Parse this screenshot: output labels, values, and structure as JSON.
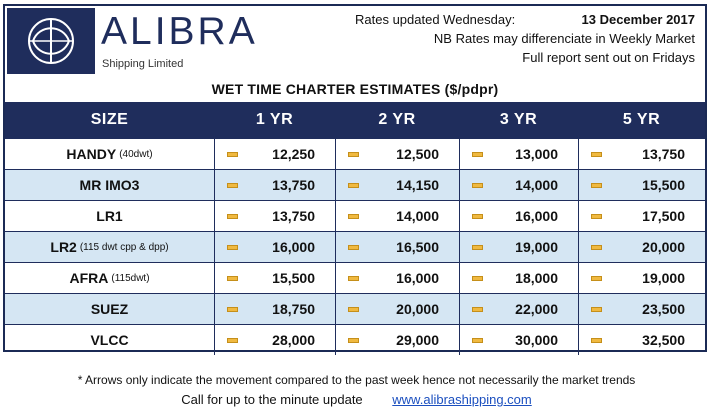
{
  "brand": {
    "name": "ALIBRA",
    "tagline": "Shipping Limited"
  },
  "update": {
    "label": "Rates updated Wednesday:",
    "date": "13 December 2017",
    "note1": "NB Rates may differenciate in Weekly Market",
    "note2": "Full report sent out on Fridays"
  },
  "title": "WET TIME CHARTER ESTIMATES ($/pdpr)",
  "columns": [
    "SIZE",
    "1 YR",
    "2 YR",
    "3 YR",
    "5 YR"
  ],
  "rows": [
    {
      "size": "HANDY",
      "note": "(40dwt)",
      "values": [
        "12,250",
        "12,500",
        "13,000",
        "13,750"
      ]
    },
    {
      "size": "MR IMO3",
      "note": "",
      "values": [
        "13,750",
        "14,150",
        "14,000",
        "15,500"
      ]
    },
    {
      "size": "LR1",
      "note": "",
      "values": [
        "13,750",
        "14,000",
        "16,000",
        "17,500"
      ]
    },
    {
      "size": "LR2",
      "note": "(115 dwt cpp & dpp)",
      "values": [
        "16,000",
        "16,500",
        "19,000",
        "20,000"
      ]
    },
    {
      "size": "AFRA",
      "note": "(115dwt)",
      "values": [
        "15,500",
        "16,000",
        "18,000",
        "19,000"
      ]
    },
    {
      "size": "SUEZ",
      "note": "",
      "values": [
        "18,750",
        "20,000",
        "22,000",
        "23,500"
      ]
    },
    {
      "size": "VLCC",
      "note": "",
      "values": [
        "28,000",
        "29,000",
        "30,000",
        "32,500"
      ]
    }
  ],
  "trend_icon": "unchanged-dash-icon",
  "footer": {
    "note": "* Arrows only indicate the movement compared to the past week hence not necessarily the market trends",
    "call": "Call for up to the minute update",
    "link": "www.alibrashipping.com"
  },
  "colors": {
    "navy": "#1f2d5c",
    "alt_row": "#d5e6f3",
    "dash": "#f0b940",
    "link": "#1b4fbf"
  }
}
